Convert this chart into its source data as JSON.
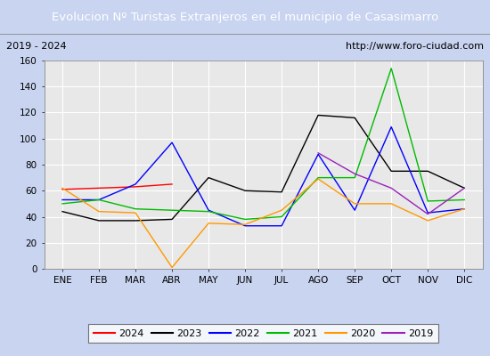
{
  "title": "Evolucion Nº Turistas Extranjeros en el municipio de Casasimarro",
  "title_bg": "#4878c8",
  "subtitle_left": "2019 - 2024",
  "subtitle_right": "http://www.foro-ciudad.com",
  "months": [
    "ENE",
    "FEB",
    "MAR",
    "ABR",
    "MAY",
    "JUN",
    "JUL",
    "AGO",
    "SEP",
    "OCT",
    "NOV",
    "DIC"
  ],
  "ylim": [
    0,
    160
  ],
  "yticks": [
    0,
    20,
    40,
    60,
    80,
    100,
    120,
    140,
    160
  ],
  "series": {
    "2024": {
      "color": "#ff0000",
      "values": [
        61,
        62,
        63,
        65,
        null,
        null,
        null,
        null,
        null,
        null,
        null,
        null
      ]
    },
    "2023": {
      "color": "#000000",
      "values": [
        44,
        37,
        37,
        38,
        70,
        60,
        59,
        118,
        116,
        75,
        75,
        62
      ]
    },
    "2022": {
      "color": "#0000ff",
      "values": [
        53,
        53,
        65,
        97,
        45,
        33,
        33,
        88,
        45,
        109,
        43,
        46
      ]
    },
    "2021": {
      "color": "#00bb00",
      "values": [
        50,
        53,
        46,
        45,
        44,
        38,
        40,
        70,
        70,
        154,
        52,
        53
      ]
    },
    "2020": {
      "color": "#ff9900",
      "values": [
        62,
        44,
        43,
        1,
        35,
        34,
        45,
        69,
        50,
        50,
        37,
        46
      ]
    },
    "2019": {
      "color": "#9922bb",
      "values": [
        null,
        null,
        null,
        null,
        null,
        null,
        null,
        89,
        73,
        62,
        42,
        62
      ]
    }
  },
  "legend_order": [
    "2024",
    "2023",
    "2022",
    "2021",
    "2020",
    "2019"
  ],
  "bg_plot": "#e8e8e8",
  "bg_subtitle": "#f0f0f0",
  "grid_color": "#ffffff",
  "fig_bg": "#c8d4f0"
}
